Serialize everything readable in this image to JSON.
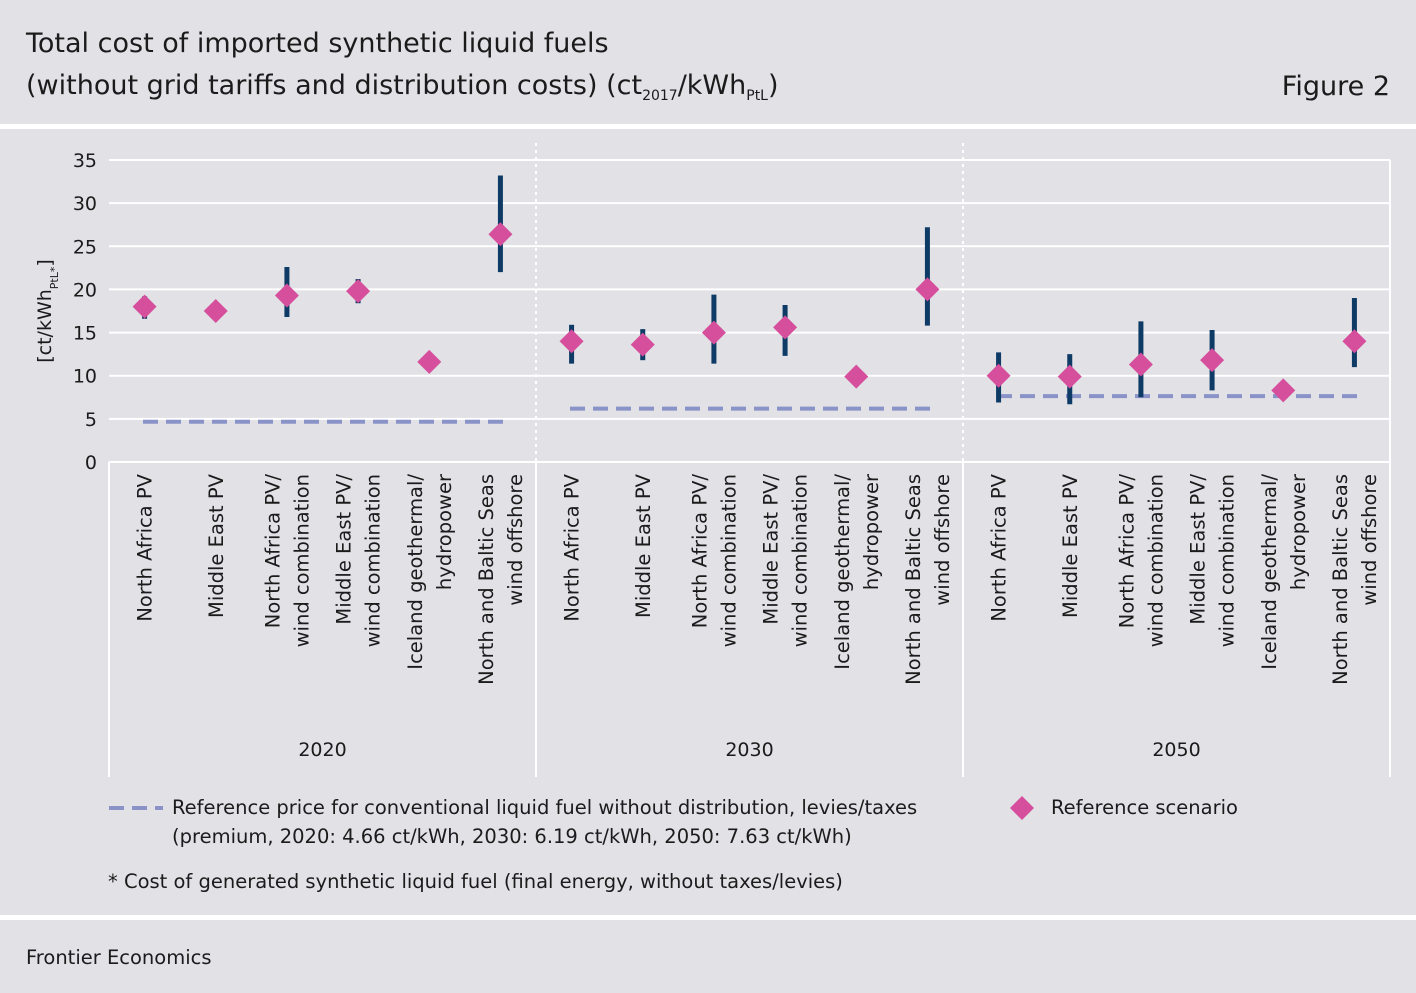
{
  "header": {
    "title_line1": "Total cost of imported synthetic liquid fuels",
    "title_line2_pre": "(without grid tariffs and distribution costs) (ct",
    "title_sub1": "2017",
    "title_mid": "/kWh",
    "title_sub2": "PtL",
    "title_post": ")",
    "figure_label": "Figure 2"
  },
  "chart_data": {
    "type": "scatter",
    "ylabel_main": "[ct/kWh",
    "ylabel_sub": "PtL*",
    "ylabel_end": "]",
    "ylim": [
      0,
      35
    ],
    "yticks": [
      "0",
      "5",
      "10",
      "15",
      "20",
      "25",
      "30",
      "35"
    ],
    "grid": true,
    "groups": [
      {
        "name": "2020",
        "reference_price": 4.66,
        "items": [
          {
            "label": [
              "North Africa PV"
            ],
            "value": 18.0,
            "low": 16.6,
            "high": 19.2
          },
          {
            "label": [
              "Middle East PV"
            ],
            "value": 17.5,
            "low": 17.5,
            "high": 17.5
          },
          {
            "label": [
              "North Africa PV/",
              "wind combination"
            ],
            "value": 19.3,
            "low": 16.8,
            "high": 22.6
          },
          {
            "label": [
              "Middle East PV/",
              "wind combination"
            ],
            "value": 19.8,
            "low": 18.4,
            "high": 21.2
          },
          {
            "label": [
              "Iceland geothermal/",
              "hydropower"
            ],
            "value": 11.6,
            "low": 11.6,
            "high": 11.6
          },
          {
            "label": [
              "North and Baltic Seas",
              "wind offshore"
            ],
            "value": 26.4,
            "low": 22.0,
            "high": 33.2
          }
        ]
      },
      {
        "name": "2030",
        "reference_price": 6.19,
        "items": [
          {
            "label": [
              "North Africa PV"
            ],
            "value": 14.0,
            "low": 11.4,
            "high": 15.9
          },
          {
            "label": [
              "Middle East PV"
            ],
            "value": 13.6,
            "low": 11.8,
            "high": 15.4
          },
          {
            "label": [
              "North Africa PV/",
              "wind combination"
            ],
            "value": 15.0,
            "low": 11.4,
            "high": 19.4
          },
          {
            "label": [
              "Middle East PV/",
              "wind combination"
            ],
            "value": 15.6,
            "low": 12.3,
            "high": 18.2
          },
          {
            "label": [
              "Iceland geothermal/",
              "hydropower"
            ],
            "value": 9.9,
            "low": 9.9,
            "high": 9.9
          },
          {
            "label": [
              "North and Baltic Seas",
              "wind offshore"
            ],
            "value": 20.0,
            "low": 15.8,
            "high": 27.2
          }
        ]
      },
      {
        "name": "2050",
        "reference_price": 7.63,
        "items": [
          {
            "label": [
              "North Africa PV"
            ],
            "value": 10.0,
            "low": 6.9,
            "high": 12.7
          },
          {
            "label": [
              "Middle East PV"
            ],
            "value": 9.9,
            "low": 6.7,
            "high": 12.5
          },
          {
            "label": [
              "North Africa PV/",
              "wind combination"
            ],
            "value": 11.3,
            "low": 7.5,
            "high": 16.3
          },
          {
            "label": [
              "Middle East PV/",
              "wind combination"
            ],
            "value": 11.8,
            "low": 8.3,
            "high": 15.3
          },
          {
            "label": [
              "Iceland geothermal/",
              "hydropower"
            ],
            "value": 8.3,
            "low": 8.3,
            "high": 8.3
          },
          {
            "label": [
              "North and Baltic Seas",
              "wind offshore"
            ],
            "value": 14.0,
            "low": 11.0,
            "high": 19.0
          }
        ]
      }
    ],
    "colors": {
      "marker": "#d64f9c",
      "range_bar": "#0e3a66",
      "reference_line": "#8a93c8",
      "grid": "#ffffff"
    }
  },
  "legend": {
    "reference_line_text_1": "Reference price for conventional liquid fuel without distribution, levies/taxes",
    "reference_line_text_2": "(premium, 2020: 4.66 ct/kWh, 2030: 6.19 ct/kWh, 2050: 7.63 ct/kWh)",
    "marker_text": "Reference scenario",
    "footnote": "* Cost of generated synthetic liquid fuel (final energy, without taxes/levies)"
  },
  "footer": {
    "source": "Frontier Economics"
  }
}
